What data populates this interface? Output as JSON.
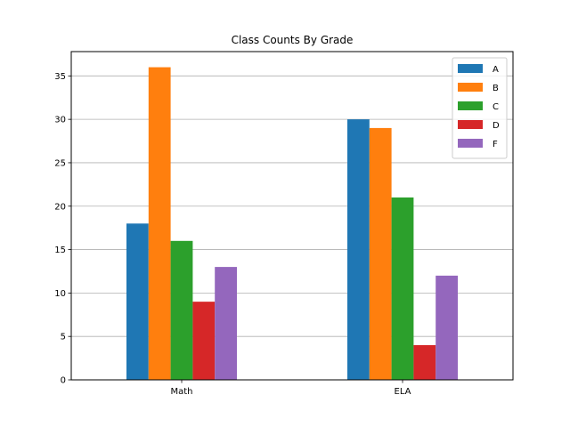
{
  "chart_data": {
    "type": "bar",
    "title": "Class Counts By Grade",
    "xlabel": "",
    "ylabel": "",
    "categories": [
      "Math",
      "ELA"
    ],
    "series": [
      {
        "name": "A",
        "values": [
          18,
          30
        ],
        "color": "#1f77b4"
      },
      {
        "name": "B",
        "values": [
          36,
          29
        ],
        "color": "#ff7f0e"
      },
      {
        "name": "C",
        "values": [
          16,
          21
        ],
        "color": "#2ca02c"
      },
      {
        "name": "D",
        "values": [
          9,
          4
        ],
        "color": "#d62728"
      },
      {
        "name": "F",
        "values": [
          13,
          12
        ],
        "color": "#9467bd"
      }
    ],
    "ylim": [
      0,
      37.8
    ],
    "yticks": [
      0,
      5,
      10,
      15,
      20,
      25,
      30,
      35
    ],
    "grid": "y",
    "legend": "top-right"
  }
}
